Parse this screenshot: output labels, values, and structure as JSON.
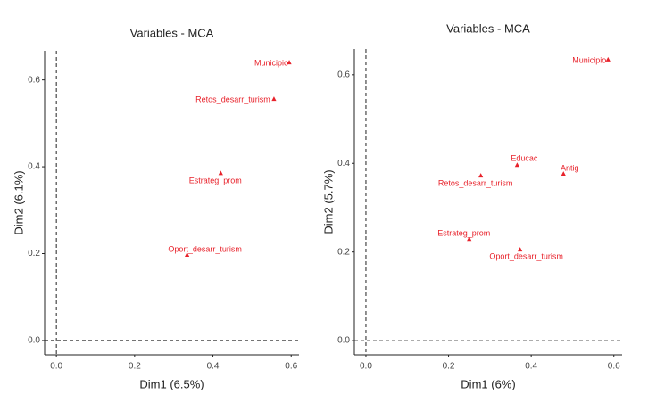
{
  "chart_data": [
    {
      "type": "scatter",
      "title": "Variables - MCA",
      "xlabel": "Dim1 (6.5%)",
      "ylabel": "Dim2 (6.1%)",
      "color": "#e8222b",
      "labels": [
        "Municipio",
        "Retos_desarr_turism",
        "Estrateg_prom",
        "Oport_desarr_turism"
      ],
      "x": [
        0.595,
        0.556,
        0.42,
        0.334
      ],
      "y": [
        0.64,
        0.556,
        0.385,
        0.197
      ],
      "xlim": [
        -0.03,
        0.62
      ],
      "ylim": [
        -0.033,
        0.667
      ],
      "xticks": [
        {
          "value": 0,
          "label": "0.0"
        },
        0.2,
        0.4,
        0.6
      ],
      "yticks": [
        {
          "value": 0,
          "label": "0.0"
        },
        0.2,
        0.4,
        0.6
      ]
    },
    {
      "type": "scatter",
      "title": "Variables - MCA",
      "xlabel": "Dim1 (6%)",
      "ylabel": "Dim2 (5.7%)",
      "color": "#e8222b",
      "labels": [
        "Municipio",
        "Educac",
        "Antig",
        "Retos_desarr_turism",
        "Estrateg_prom",
        "Oport_desarr_turism"
      ],
      "x": [
        0.586,
        0.366,
        0.478,
        0.278,
        0.25,
        0.373
      ],
      "y": [
        0.634,
        0.396,
        0.376,
        0.372,
        0.229,
        0.205
      ],
      "xlim": [
        -0.028,
        0.62
      ],
      "ylim": [
        -0.032,
        0.658
      ],
      "xticks": [
        {
          "value": 0,
          "label": "0.0"
        },
        0.2,
        0.4,
        0.6
      ],
      "yticks": [
        {
          "value": 0,
          "label": "0.0"
        },
        0.2,
        0.4,
        0.6
      ]
    }
  ]
}
